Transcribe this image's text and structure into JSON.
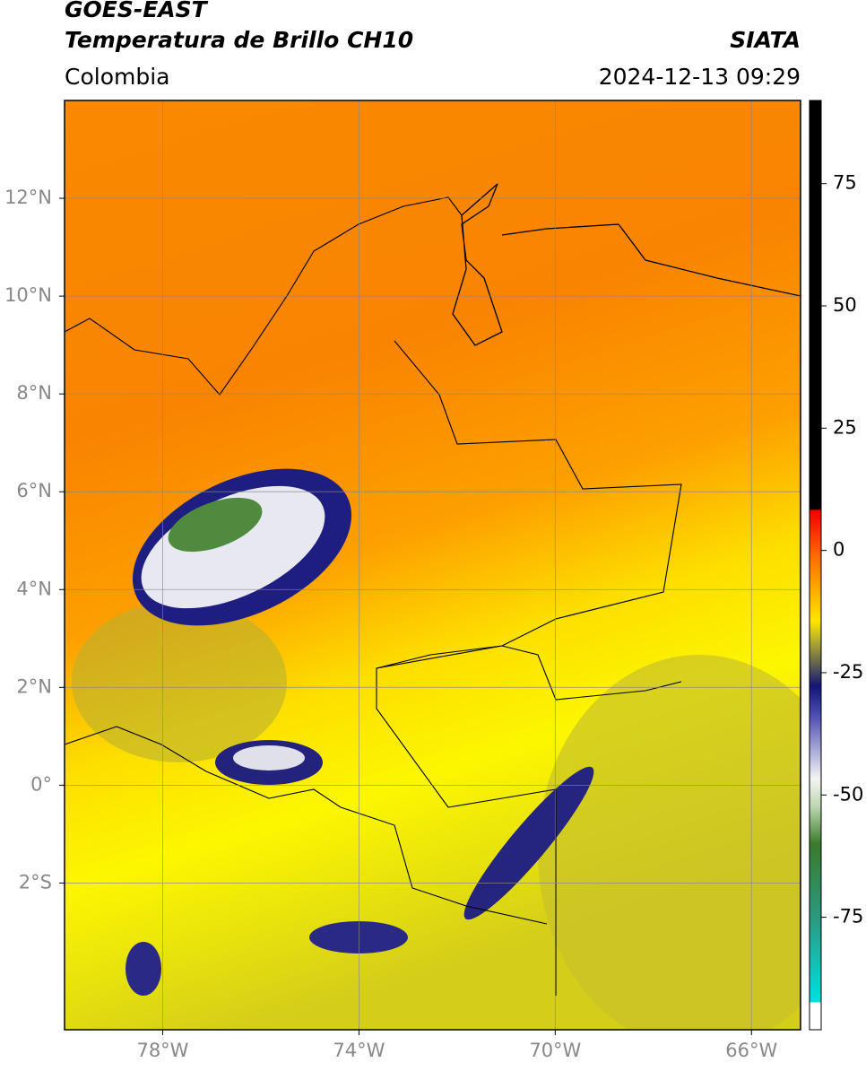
{
  "header": {
    "title": "GOES-EAST",
    "subtitle": "Temperatura de Brillo CH10",
    "region": "Colombia",
    "source": "SIATA",
    "datetime": "2024-12-13 09:29"
  },
  "map": {
    "xlim": [
      -80,
      -65
    ],
    "ylim": [
      -5,
      14
    ],
    "xticks": [
      {
        "value": -78,
        "label": "78°W"
      },
      {
        "value": -74,
        "label": "74°W"
      },
      {
        "value": -70,
        "label": "70°W"
      },
      {
        "value": -66,
        "label": "66°W"
      }
    ],
    "yticks": [
      {
        "value": 12,
        "label": "12°N"
      },
      {
        "value": 10,
        "label": "10°N"
      },
      {
        "value": 8,
        "label": "8°N"
      },
      {
        "value": 6,
        "label": "6°N"
      },
      {
        "value": 4,
        "label": "4°N"
      },
      {
        "value": 2,
        "label": "2°N"
      },
      {
        "value": 0,
        "label": "0°"
      },
      {
        "value": -2,
        "label": "2°S"
      }
    ],
    "grid": true
  },
  "colorbar": {
    "lim": [
      -98,
      92
    ],
    "ticks": [
      75,
      50,
      25,
      0,
      -25,
      -50,
      -75
    ]
  }
}
